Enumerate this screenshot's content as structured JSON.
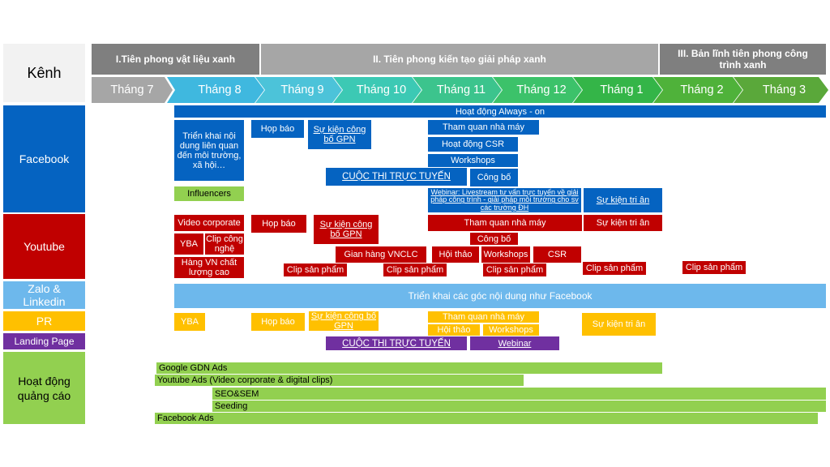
{
  "kenh_label": "Kênh",
  "phases": [
    {
      "label": "I.Tiên phong vật liệu xanh",
      "color": "#7f7f7f"
    },
    {
      "label": "II. Tiên phong kiến tạo giải pháp xanh",
      "color": "#a6a6a6"
    },
    {
      "label": "III. Bản lĩnh tiên phong công trình xanh",
      "color": "#7f7f7f"
    }
  ],
  "months": [
    {
      "label": "Tháng 7",
      "color": "#a6a6a6"
    },
    {
      "label": "Tháng 8",
      "color": "#3fb8df"
    },
    {
      "label": "Tháng 9",
      "color": "#4cc3d9"
    },
    {
      "label": "Tháng 10",
      "color": "#3cc9b4"
    },
    {
      "label": "Tháng 11",
      "color": "#3cc48d"
    },
    {
      "label": "Tháng 12",
      "color": "#3cc26a"
    },
    {
      "label": "Tháng 1",
      "color": "#34b548"
    },
    {
      "label": "Tháng 2",
      "color": "#4fb23a"
    },
    {
      "label": "Tháng 3",
      "color": "#5aa83a"
    }
  ],
  "channels": {
    "facebook": "Facebook",
    "youtube": "Youtube",
    "zalo": "Zalo & Linkedin",
    "pr": "PR",
    "landing": "Landing Page",
    "ads": "Hoạt động quảng cáo"
  },
  "facebook": {
    "always_on": "Hoạt động Always - on",
    "trien_khai": "Triển khai nội dung liên quan đến môi trường, xã hội…",
    "influencers": "Influencers",
    "hop_bao": "Họp báo",
    "su_kien_gpn": "Sự kiện công bố GPN",
    "tham_quan": "Tham quan nhà máy",
    "csr": "Hoạt động CSR",
    "workshops": "Workshops",
    "cuoc_thi": "CUỘC THI TRỰC TUYẾN",
    "cong_bo": "Công bố",
    "webinar": "Webinar: Livestream tư vấn trực tuyến về giải pháp công trình - giải pháp môi trường cho sv các trường ĐH",
    "tri_an": "Sự kiện tri ân"
  },
  "youtube": {
    "video_corporate": "Video corporate",
    "yba": "YBA",
    "clip_cong_nghe": "Clip công nghệ",
    "hang_vn": "Hàng VN chất lượng cao",
    "hop_bao": "Họp báo",
    "su_kien_gpn": "Sự kiện công bố GPN",
    "tham_quan": "Tham quan nhà máy",
    "tri_an": "Sự kiện tri ân",
    "cong_bo": "Công bố",
    "gian_hang": "Gian hàng VNCLC",
    "hoi_thao": "Hội thảo",
    "workshops": "Workshops",
    "csr": "CSR",
    "clip_sp": "Clip sản phẩm"
  },
  "zalo": {
    "trien_khai": "Triển khai các góc nội dung như Facebook"
  },
  "pr": {
    "yba": "YBA",
    "hop_bao": "Họp báo",
    "su_kien_gpn": "Sự kiện công bố GPN",
    "tham_quan": "Tham quan nhà máy",
    "hoi_thao": "Hội thảo",
    "workshops": "Workshops",
    "tri_an": "Sự kiện tri ân"
  },
  "landing": {
    "cuoc_thi": "CUỘC THI TRỰC TUYẾN",
    "webinar": "Webinar"
  },
  "ads": {
    "google": "Google GDN Ads",
    "youtube_ads": "Youtube Ads (Video corporate & digital clips)",
    "seo": "SEO&SEM",
    "seeding": "Seeding",
    "facebook_ads": "Facebook Ads"
  }
}
